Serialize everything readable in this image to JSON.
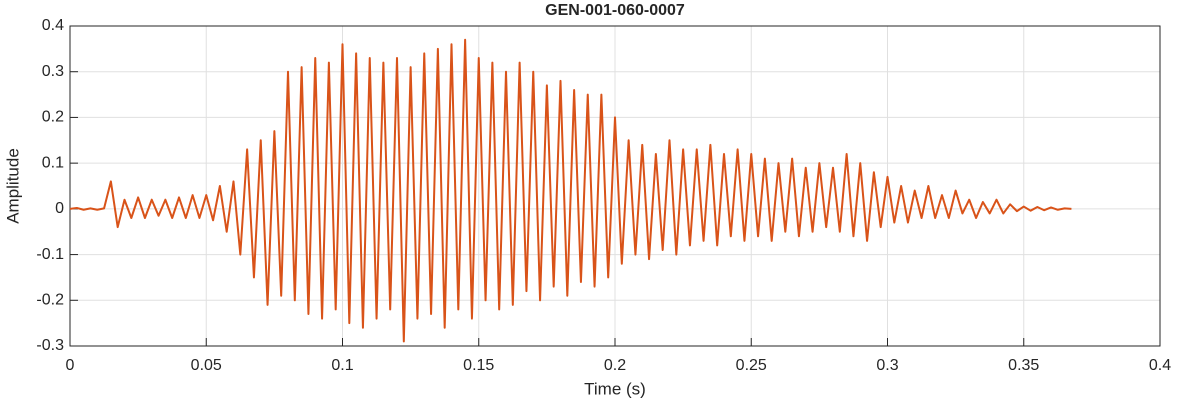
{
  "chart_data": {
    "type": "line",
    "title": "GEN-001-060-0007",
    "xlabel": "Time (s)",
    "ylabel": "Amplitude",
    "x": [
      0,
      0.0025,
      0.005,
      0.0075,
      0.01,
      0.0125,
      0.015,
      0.0175,
      0.02,
      0.0225,
      0.025,
      0.0275,
      0.03,
      0.0325,
      0.035,
      0.0375,
      0.04,
      0.0425,
      0.045,
      0.0475,
      0.05,
      0.0525,
      0.055,
      0.0575,
      0.06,
      0.0625,
      0.065,
      0.0675,
      0.07,
      0.0725,
      0.075,
      0.0775,
      0.08,
      0.0825,
      0.085,
      0.0875,
      0.09,
      0.0925,
      0.095,
      0.0975,
      0.1,
      0.1025,
      0.105,
      0.1075,
      0.11,
      0.1125,
      0.115,
      0.1175,
      0.12,
      0.1225,
      0.125,
      0.1275,
      0.13,
      0.1325,
      0.135,
      0.1375,
      0.14,
      0.1425,
      0.145,
      0.1475,
      0.15,
      0.1525,
      0.155,
      0.1575,
      0.16,
      0.1625,
      0.165,
      0.1675,
      0.17,
      0.1725,
      0.175,
      0.1775,
      0.18,
      0.1825,
      0.185,
      0.1875,
      0.19,
      0.1925,
      0.195,
      0.1975,
      0.2,
      0.2025,
      0.205,
      0.2075,
      0.21,
      0.2125,
      0.215,
      0.2175,
      0.22,
      0.2225,
      0.225,
      0.2275,
      0.23,
      0.2325,
      0.235,
      0.2375,
      0.24,
      0.2425,
      0.245,
      0.2475,
      0.25,
      0.2525,
      0.255,
      0.2575,
      0.26,
      0.2625,
      0.265,
      0.2675,
      0.27,
      0.2725,
      0.275,
      0.2775,
      0.28,
      0.2825,
      0.285,
      0.2875,
      0.29,
      0.2925,
      0.295,
      0.2975,
      0.3,
      0.3025,
      0.305,
      0.3075,
      0.31,
      0.3125,
      0.315,
      0.3175,
      0.32,
      0.3225,
      0.325,
      0.3275,
      0.33,
      0.3325,
      0.335,
      0.3375,
      0.34,
      0.3425,
      0.345,
      0.3475,
      0.35,
      0.3525,
      0.355,
      0.3575,
      0.36,
      0.3625,
      0.365,
      0.3675
    ],
    "series": [
      {
        "color": "#D95319",
        "values": [
          0,
          0.002,
          -0.002,
          0.001,
          -0.002,
          0.001,
          0.06,
          -0.04,
          0.02,
          -0.02,
          0.025,
          -0.02,
          0.02,
          -0.015,
          0.02,
          -0.02,
          0.025,
          -0.02,
          0.03,
          -0.02,
          0.03,
          -0.025,
          0.05,
          -0.05,
          0.06,
          -0.1,
          0.13,
          -0.15,
          0.15,
          -0.21,
          0.17,
          -0.19,
          0.3,
          -0.2,
          0.31,
          -0.23,
          0.33,
          -0.24,
          0.32,
          -0.22,
          0.36,
          -0.25,
          0.34,
          -0.26,
          0.33,
          -0.24,
          0.32,
          -0.22,
          0.33,
          -0.29,
          0.31,
          -0.24,
          0.34,
          -0.23,
          0.35,
          -0.26,
          0.36,
          -0.22,
          0.37,
          -0.24,
          0.33,
          -0.2,
          0.32,
          -0.22,
          0.3,
          -0.21,
          0.32,
          -0.18,
          0.3,
          -0.2,
          0.27,
          -0.17,
          0.28,
          -0.19,
          0.26,
          -0.16,
          0.25,
          -0.17,
          0.25,
          -0.15,
          0.2,
          -0.12,
          0.15,
          -0.1,
          0.14,
          -0.11,
          0.12,
          -0.09,
          0.15,
          -0.1,
          0.13,
          -0.08,
          0.13,
          -0.07,
          0.14,
          -0.08,
          0.12,
          -0.06,
          0.13,
          -0.07,
          0.12,
          -0.06,
          0.11,
          -0.07,
          0.1,
          -0.05,
          0.11,
          -0.06,
          0.09,
          -0.05,
          0.1,
          -0.04,
          0.09,
          -0.05,
          0.12,
          -0.06,
          0.1,
          -0.07,
          0.08,
          -0.04,
          0.07,
          -0.03,
          0.05,
          -0.03,
          0.04,
          -0.02,
          0.05,
          -0.02,
          0.03,
          -0.02,
          0.04,
          -0.01,
          0.02,
          -0.02,
          0.015,
          -0.01,
          0.02,
          -0.01,
          0.01,
          -0.005,
          0.005,
          -0.004,
          0.004,
          -0.003,
          0.003,
          -0.002,
          0.001,
          0
        ]
      }
    ],
    "xlim": [
      0,
      0.4
    ],
    "xticks": [
      0,
      0.05,
      0.1,
      0.15,
      0.2,
      0.25,
      0.3,
      0.35,
      0.4
    ],
    "ylim": [
      -0.3,
      0.4
    ],
    "yticks": [
      -0.3,
      -0.2,
      -0.1,
      0,
      0.1,
      0.2,
      0.3,
      0.4
    ],
    "grid": true
  }
}
